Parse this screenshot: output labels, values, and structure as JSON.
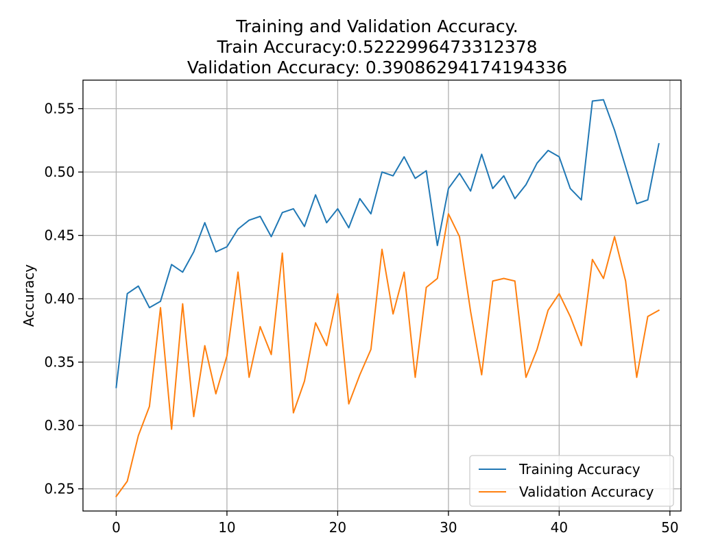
{
  "chart_data": {
    "type": "line",
    "title_lines": [
      "Training and Validation Accuracy.",
      "Train Accuracy:0.5222996473312378",
      "Validation Accuracy: 0.39086294174194336"
    ],
    "xlabel": "",
    "ylabel": "Accuracy",
    "xlim": [
      -3,
      51
    ],
    "ylim": [
      0.2325,
      0.5725
    ],
    "xticks": [
      0,
      10,
      20,
      30,
      40,
      50
    ],
    "yticks": [
      0.25,
      0.3,
      0.35,
      0.4,
      0.45,
      0.5,
      0.55
    ],
    "grid": true,
    "legend_position": "lower-right",
    "x": [
      0,
      1,
      2,
      3,
      4,
      5,
      6,
      7,
      8,
      9,
      10,
      11,
      12,
      13,
      14,
      15,
      16,
      17,
      18,
      19,
      20,
      21,
      22,
      23,
      24,
      25,
      26,
      27,
      28,
      29,
      30,
      31,
      32,
      33,
      34,
      35,
      36,
      37,
      38,
      39,
      40,
      41,
      42,
      43,
      44,
      45,
      46,
      47,
      48,
      49
    ],
    "series": [
      {
        "name": "Training Accuracy",
        "color": "#1f77b4",
        "values": [
          0.33,
          0.404,
          0.41,
          0.393,
          0.398,
          0.427,
          0.421,
          0.437,
          0.46,
          0.437,
          0.441,
          0.455,
          0.462,
          0.465,
          0.449,
          0.468,
          0.471,
          0.457,
          0.482,
          0.46,
          0.471,
          0.456,
          0.479,
          0.467,
          0.5,
          0.497,
          0.512,
          0.495,
          0.501,
          0.442,
          0.487,
          0.499,
          0.485,
          0.514,
          0.487,
          0.497,
          0.479,
          0.49,
          0.507,
          0.517,
          0.512,
          0.487,
          0.478,
          0.556,
          0.557,
          0.533,
          0.504,
          0.475,
          0.478,
          0.5223
        ]
      },
      {
        "name": "Validation Accuracy",
        "color": "#ff7f0e",
        "values": [
          0.244,
          0.256,
          0.292,
          0.315,
          0.393,
          0.297,
          0.396,
          0.307,
          0.363,
          0.325,
          0.355,
          0.421,
          0.338,
          0.378,
          0.356,
          0.436,
          0.31,
          0.335,
          0.381,
          0.363,
          0.404,
          0.317,
          0.34,
          0.36,
          0.439,
          0.388,
          0.421,
          0.338,
          0.409,
          0.416,
          0.467,
          0.449,
          0.39,
          0.34,
          0.414,
          0.416,
          0.414,
          0.338,
          0.36,
          0.391,
          0.404,
          0.386,
          0.363,
          0.431,
          0.416,
          0.449,
          0.414,
          0.338,
          0.386,
          0.3909
        ]
      }
    ]
  }
}
